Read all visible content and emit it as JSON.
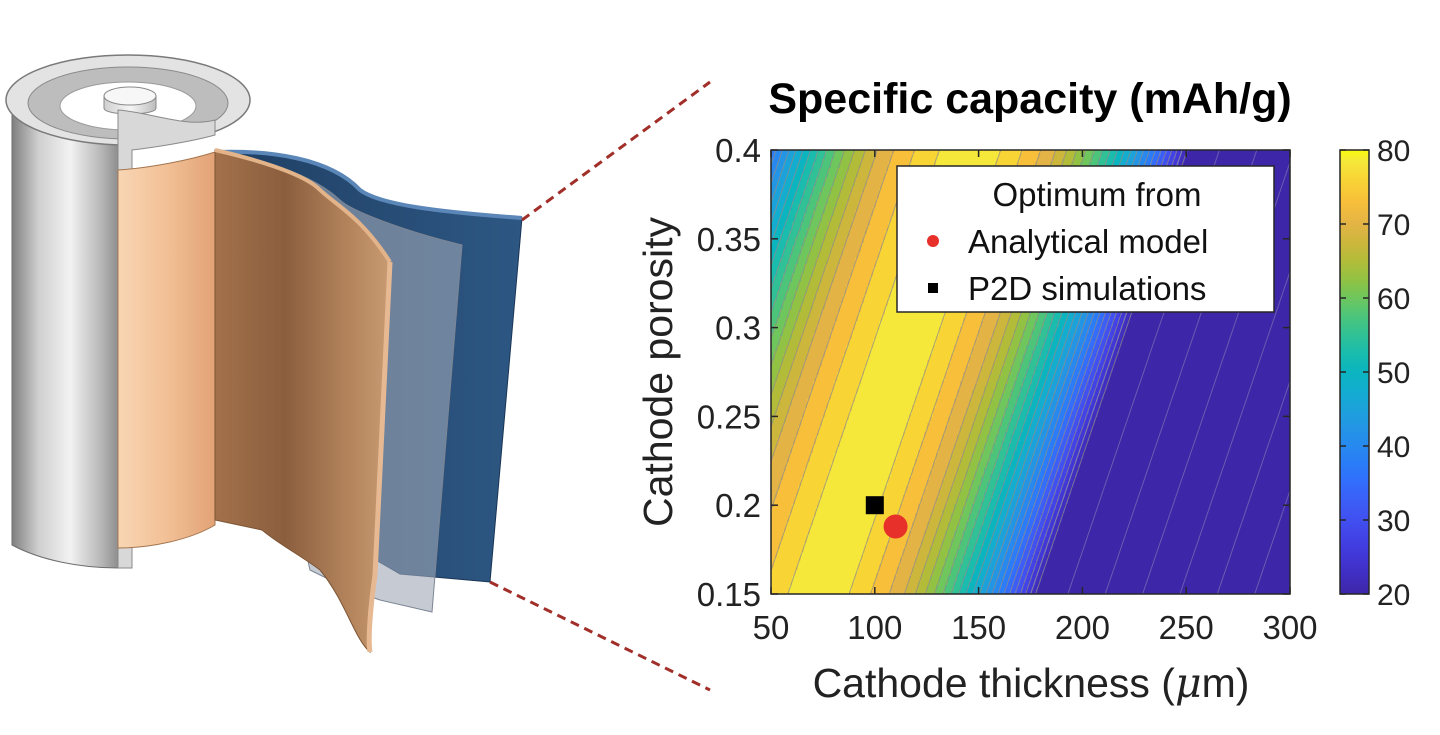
{
  "chart_data": {
    "type": "heatmap",
    "subtype": "filled-contour",
    "title": "Specific capacity (mAh/g)",
    "xlabel_prefix": "Cathode thickness (",
    "xlabel_unit": "μ",
    "xlabel_suffix": "m)",
    "ylabel": "Cathode porosity",
    "xlim": [
      50,
      300
    ],
    "ylim": [
      0.15,
      0.4
    ],
    "xticks": [
      50,
      100,
      150,
      200,
      250,
      300
    ],
    "xtick_labels": [
      "50",
      "100",
      "150",
      "200",
      "250",
      "300"
    ],
    "yticks": [
      0.15,
      0.2,
      0.25,
      0.3,
      0.35,
      0.4
    ],
    "ytick_labels": [
      "0.15",
      "0.2",
      "0.25",
      "0.3",
      "0.35",
      "0.4"
    ],
    "colorbar": {
      "min": 20,
      "max": 80,
      "ticks": [
        20,
        30,
        40,
        50,
        60,
        70,
        80
      ],
      "tick_labels": [
        "20",
        "30",
        "40",
        "50",
        "60",
        "70",
        "80"
      ]
    },
    "legend": {
      "title": "Optimum from",
      "position": "top-right",
      "entries": [
        {
          "label": "Analytical model",
          "marker": "circle",
          "color": "#e8302a"
        },
        {
          "label": "P2D simulations",
          "marker": "square",
          "color": "#000000"
        }
      ]
    },
    "points": [
      {
        "series": "Analytical model",
        "x": 110,
        "y": 0.188
      },
      {
        "series": "P2D simulations",
        "x": 100,
        "y": 0.2
      }
    ],
    "ridge_model": {
      "x_opt_at_015": 77,
      "x_opt_at_040": 150,
      "peak": 80
    },
    "contour_bands": [
      {
        "level": 20,
        "color": "#3e26a8"
      },
      {
        "level": 22.5,
        "color": "#402ec1"
      },
      {
        "level": 25,
        "color": "#4136d6"
      },
      {
        "level": 27.5,
        "color": "#4242e6"
      },
      {
        "level": 30,
        "color": "#4150f0"
      },
      {
        "level": 32.5,
        "color": "#3c5ef7"
      },
      {
        "level": 35,
        "color": "#326dfc"
      },
      {
        "level": 37.5,
        "color": "#2a7cf8"
      },
      {
        "level": 40,
        "color": "#2789ef"
      },
      {
        "level": 42.5,
        "color": "#2395e5"
      },
      {
        "level": 45,
        "color": "#1ca2da"
      },
      {
        "level": 47.5,
        "color": "#12adcf"
      },
      {
        "level": 50,
        "color": "#0bb5c0"
      },
      {
        "level": 52.5,
        "color": "#19bcad"
      },
      {
        "level": 55,
        "color": "#30c196"
      },
      {
        "level": 57.5,
        "color": "#4cc57b"
      },
      {
        "level": 60,
        "color": "#6ec65d"
      },
      {
        "level": 62.5,
        "color": "#92c243"
      },
      {
        "level": 65,
        "color": "#b2bc39"
      },
      {
        "level": 67.5,
        "color": "#cdb63c"
      },
      {
        "level": 70,
        "color": "#e3b445"
      },
      {
        "level": 73,
        "color": "#f7bf3a"
      },
      {
        "level": 76,
        "color": "#f8d435"
      },
      {
        "level": 78.5,
        "color": "#f5e83a"
      }
    ]
  },
  "colors": {
    "connector": "#a12e28",
    "copper_light": "#f4c9a3",
    "copper_dark": "#ab7a52",
    "can_light": "#f0f0f0",
    "can_dark": "#7f7f7f",
    "blue_sheet": "#2b527d",
    "separator": "#9ea7b6"
  }
}
